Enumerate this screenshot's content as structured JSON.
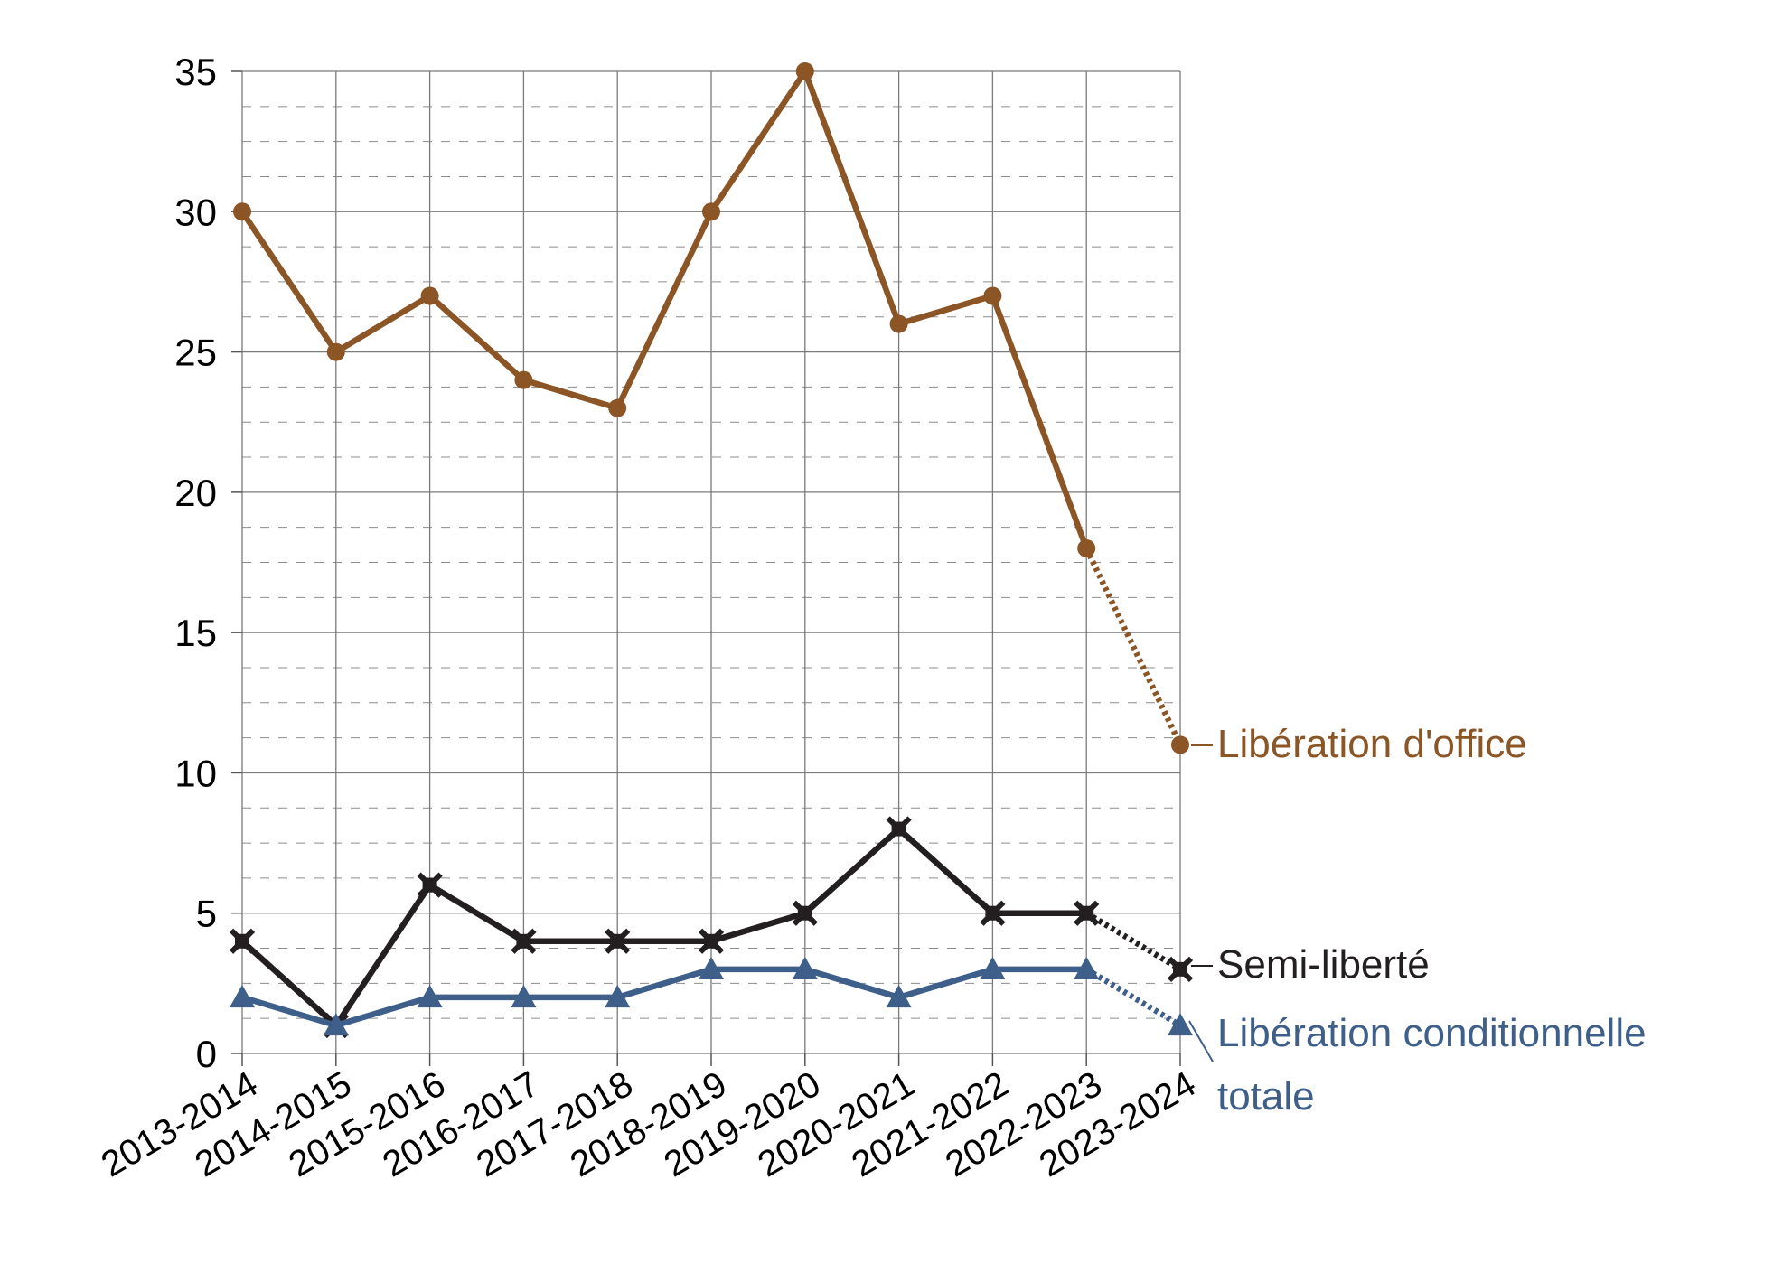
{
  "chart_data": {
    "type": "line",
    "categories": [
      "2013-2014",
      "2014-2015",
      "2015-2016",
      "2016-2017",
      "2017-2018",
      "2018-2019",
      "2019-2020",
      "2020-2021",
      "2021-2022",
      "2022-2023",
      "2023-2024"
    ],
    "ylim": [
      0,
      35
    ],
    "yticks": [
      0,
      5,
      10,
      15,
      20,
      25,
      30,
      35
    ],
    "grid": true,
    "series": [
      {
        "name": "Libération d'office",
        "label_line2": "",
        "color": "#8B5526",
        "marker": "circle",
        "values": [
          30,
          25,
          27,
          24,
          23,
          30,
          35,
          26,
          27,
          18,
          11
        ]
      },
      {
        "name": "Semi-liberté",
        "label_line2": "",
        "color": "#231F20",
        "marker": "star",
        "values": [
          4,
          1,
          6,
          4,
          4,
          4,
          5,
          8,
          5,
          5,
          3
        ]
      },
      {
        "name": "Libération conditionnelle",
        "label_line2": "totale",
        "color": "#3E5F8A",
        "marker": "triangle",
        "values": [
          2,
          1,
          2,
          2,
          2,
          3,
          3,
          2,
          3,
          3,
          1
        ]
      }
    ]
  }
}
